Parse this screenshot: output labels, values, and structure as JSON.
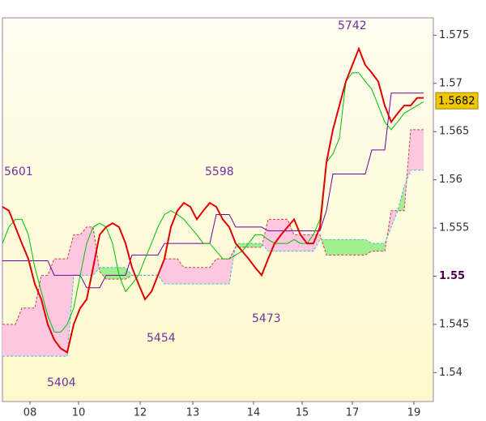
{
  "chart_data": {
    "type": "ichimoku",
    "x": [
      0,
      2,
      4,
      6,
      8,
      10,
      12,
      14,
      16,
      18,
      20,
      22,
      24,
      26,
      28,
      30,
      32,
      34,
      36,
      38,
      40,
      42,
      44,
      46,
      48,
      50,
      52,
      54,
      56,
      58,
      60,
      62,
      64,
      66,
      68,
      70,
      72,
      74,
      76,
      78,
      80,
      82,
      84,
      86,
      88,
      90,
      92,
      94,
      96,
      98,
      100,
      102,
      104,
      106,
      108,
      110,
      112,
      114,
      116,
      118,
      120,
      122,
      124,
      126,
      128,
      130
    ],
    "series": [
      {
        "color": "#e00000",
        "values": [
          1.5572,
          1.5568,
          1.5551,
          1.5534,
          1.5518,
          1.5492,
          1.5476,
          1.545,
          1.5434,
          1.5425,
          1.5421,
          1.545,
          1.5467,
          1.5476,
          1.5509,
          1.5543,
          1.5551,
          1.5555,
          1.5551,
          1.5534,
          1.5509,
          1.5492,
          1.5476,
          1.5484,
          1.5501,
          1.5518,
          1.5551,
          1.5568,
          1.5576,
          1.5572,
          1.5559,
          1.5568,
          1.5576,
          1.5572,
          1.5559,
          1.5551,
          1.5534,
          1.5526,
          1.5518,
          1.5509,
          1.5501,
          1.5518,
          1.5534,
          1.5543,
          1.5551,
          1.5559,
          1.5543,
          1.5534,
          1.5534,
          1.5551,
          1.5618,
          1.5652,
          1.5677,
          1.5702,
          1.5719,
          1.5736,
          1.5719,
          1.5711,
          1.5702,
          1.5677,
          1.566,
          1.5669,
          1.5677,
          1.5677,
          1.5685,
          1.5685
        ]
      },
      {
        "color": "#00c000",
        "values": [
          1.5534,
          1.5551,
          1.5559,
          1.5559,
          1.5543,
          1.5509,
          1.5484,
          1.5459,
          1.5442,
          1.5442,
          1.545,
          1.5467,
          1.5501,
          1.5534,
          1.5551,
          1.5555,
          1.5551,
          1.5534,
          1.5501,
          1.5484,
          1.5492,
          1.5501,
          1.5518,
          1.5534,
          1.5551,
          1.5564,
          1.5568,
          1.5564,
          1.5559,
          1.5551,
          1.5543,
          1.5534,
          1.5534,
          1.5526,
          1.5518,
          1.5518,
          1.5522,
          1.5526,
          1.5534,
          1.5543,
          1.5543,
          1.5538,
          1.5534,
          1.5534,
          1.5534,
          1.5538,
          1.5534,
          1.5534,
          1.5543,
          1.5559,
          1.5618,
          1.5627,
          1.5643,
          1.5702,
          1.5711,
          1.5711,
          1.5702,
          1.5694,
          1.5677,
          1.566,
          1.5652,
          1.566,
          1.5669,
          1.5673,
          1.5677,
          1.5681
        ]
      },
      {
        "color": "#7000a0",
        "values": [
          1.5516,
          1.5516,
          1.5516,
          1.5516,
          1.5516,
          1.5516,
          1.5516,
          1.5516,
          1.5501,
          1.5501,
          1.5501,
          1.5501,
          1.5501,
          1.5488,
          1.5488,
          1.5488,
          1.5501,
          1.5501,
          1.5501,
          1.5501,
          1.5522,
          1.5522,
          1.5522,
          1.5522,
          1.5522,
          1.5534,
          1.5534,
          1.5534,
          1.5534,
          1.5534,
          1.5534,
          1.5534,
          1.5534,
          1.5564,
          1.5564,
          1.5564,
          1.5551,
          1.5551,
          1.5551,
          1.5551,
          1.5551,
          1.5547,
          1.5547,
          1.5547,
          1.5547,
          1.5547,
          1.5547,
          1.5547,
          1.5547,
          1.5547,
          1.5568,
          1.5606,
          1.5606,
          1.5606,
          1.5606,
          1.5606,
          1.5606,
          1.5631,
          1.5631,
          1.5631,
          1.569,
          1.569,
          1.569,
          1.569,
          1.569,
          1.569
        ]
      },
      {
        "color": "#d04040",
        "dashed": true,
        "values": [
          1.545,
          1.545,
          1.545,
          1.5467,
          1.5467,
          1.5467,
          1.5501,
          1.5501,
          1.5518,
          1.5518,
          1.5518,
          1.5543,
          1.5543,
          1.5551,
          1.5551,
          1.5505,
          1.5497,
          1.5497,
          1.5497,
          1.5497,
          1.5501,
          1.5501,
          1.5501,
          1.5501,
          1.5501,
          1.5518,
          1.5518,
          1.5518,
          1.5509,
          1.5509,
          1.5509,
          1.5509,
          1.5509,
          1.5518,
          1.5518,
          1.5518,
          1.553,
          1.553,
          1.553,
          1.553,
          1.553,
          1.5559,
          1.5559,
          1.5559,
          1.5559,
          1.5543,
          1.5543,
          1.5543,
          1.5543,
          1.5543,
          1.5522,
          1.5522,
          1.5522,
          1.5522,
          1.5522,
          1.5522,
          1.5522,
          1.5526,
          1.5526,
          1.5526,
          1.5568,
          1.5568,
          1.5568,
          1.5652,
          1.5652,
          1.5652
        ]
      },
      {
        "color": "#40c0d0",
        "dashed": true,
        "values": [
          1.5417,
          1.5417,
          1.5417,
          1.5417,
          1.5417,
          1.5417,
          1.5417,
          1.5417,
          1.5417,
          1.5417,
          1.5417,
          1.5501,
          1.5501,
          1.5501,
          1.5501,
          1.5509,
          1.5509,
          1.5509,
          1.5509,
          1.5509,
          1.5501,
          1.5501,
          1.5501,
          1.5501,
          1.5501,
          1.5492,
          1.5492,
          1.5492,
          1.5492,
          1.5492,
          1.5492,
          1.5492,
          1.5492,
          1.5492,
          1.5492,
          1.5492,
          1.5534,
          1.5534,
          1.5534,
          1.5534,
          1.5534,
          1.5526,
          1.5526,
          1.5526,
          1.5526,
          1.5526,
          1.5526,
          1.5526,
          1.5526,
          1.5538,
          1.5538,
          1.5538,
          1.5538,
          1.5538,
          1.5538,
          1.5538,
          1.5538,
          1.5534,
          1.5534,
          1.5534,
          1.5551,
          1.5568,
          1.5593,
          1.561,
          1.561,
          1.561
        ]
      }
    ],
    "cloud_colors": [
      "#ffc8e0",
      "#a0f090"
    ],
    "last_price": 1.5682,
    "annotations": [
      "5601",
      "5598",
      "5742",
      "5404",
      "5454",
      "5473"
    ],
    "xlim": [
      0,
      133
    ],
    "xticks": [
      {
        "value": 8.5,
        "label": "08"
      },
      {
        "value": 23.5,
        "label": "10"
      },
      {
        "value": 42.5,
        "label": "12"
      },
      {
        "value": 58.75,
        "label": "13"
      },
      {
        "value": 77.5,
        "label": "14"
      },
      {
        "value": 92.5,
        "label": "15"
      },
      {
        "value": 108,
        "label": "17"
      },
      {
        "value": 127,
        "label": "19"
      }
    ],
    "ylim": [
      1.537,
      1.5768
    ],
    "yticks": [
      1.54,
      1.545,
      1.55,
      1.555,
      1.56,
      1.565,
      1.57,
      1.575
    ]
  }
}
